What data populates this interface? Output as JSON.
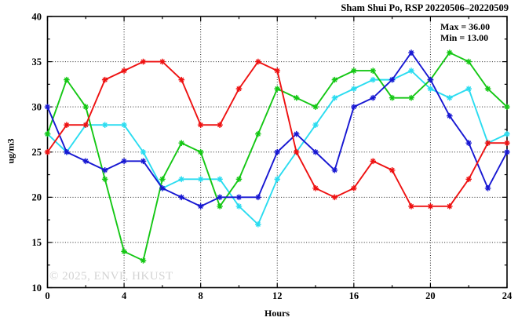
{
  "watermark": "© 2025, ENVF, HKUST",
  "annotation": {
    "max_label": "Max = 36.00",
    "min_label": "Min = 13.00"
  },
  "chart_data": {
    "type": "line",
    "title": "Sham Shui Po, RSP 20220506–20220509",
    "xlabel": "Hours",
    "ylabel": "ug/m3",
    "xlim": [
      0,
      24
    ],
    "ylim": [
      10,
      40
    ],
    "xticks": [
      0,
      4,
      8,
      12,
      16,
      20,
      24
    ],
    "yticks": [
      10,
      15,
      20,
      25,
      30,
      35,
      40
    ],
    "x_minor_step": 2,
    "y_minor_step": 2.5,
    "grid": {
      "style": "dotted",
      "color": "#000000",
      "x_major": [
        4,
        8,
        12,
        16,
        20
      ],
      "y_major": [
        15,
        20,
        25,
        30,
        35
      ]
    },
    "legend_position": "none",
    "marker": "asterisk",
    "background": "#ffffff",
    "x": [
      0,
      1,
      2,
      3,
      4,
      5,
      6,
      7,
      8,
      9,
      10,
      11,
      12,
      13,
      14,
      15,
      16,
      17,
      18,
      19,
      20,
      21,
      22,
      23,
      24
    ],
    "series": [
      {
        "name": "red",
        "color": "#ee1111",
        "values": [
          25,
          28,
          28,
          33,
          34,
          35,
          35,
          33,
          28,
          28,
          32,
          35,
          34,
          25,
          21,
          20,
          21,
          24,
          23,
          19,
          19,
          19,
          22,
          26,
          26
        ]
      },
      {
        "name": "green",
        "color": "#14c714",
        "values": [
          27,
          33,
          30,
          22,
          14,
          13,
          22,
          26,
          25,
          19,
          22,
          27,
          32,
          31,
          30,
          33,
          34,
          34,
          31,
          31,
          33,
          36,
          35,
          32,
          30
        ]
      },
      {
        "name": "blue",
        "color": "#1717d2",
        "values": [
          30,
          25,
          24,
          23,
          24,
          24,
          21,
          20,
          19,
          20,
          20,
          20,
          25,
          27,
          25,
          23,
          30,
          31,
          33,
          36,
          33,
          29,
          26,
          21,
          25
        ]
      },
      {
        "name": "cyan",
        "color": "#2adcf0",
        "values": [
          27,
          25,
          28,
          28,
          28,
          25,
          21,
          22,
          22,
          22,
          19,
          17,
          22,
          25,
          28,
          31,
          32,
          33,
          33,
          34,
          32,
          31,
          32,
          26,
          27
        ]
      }
    ],
    "draw_order": [
      "cyan",
      "green",
      "blue",
      "red"
    ]
  }
}
